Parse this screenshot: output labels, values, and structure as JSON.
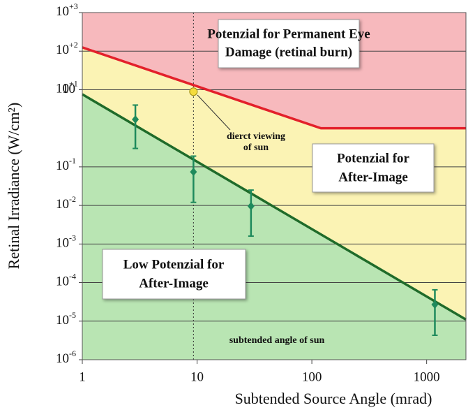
{
  "chart_data": {
    "type": "threshold-zones",
    "xlabel": "Subtended Source Angle (mrad)",
    "ylabel": "Retinal Irradiance (W/cm²)",
    "xscale": "log",
    "yscale": "log",
    "xlim": [
      1,
      2200
    ],
    "ylim": [
      1e-06,
      1000
    ],
    "xticks": [
      1,
      10,
      100,
      1000
    ],
    "yticks": [
      {
        "value": 1e-06,
        "label": "10-6"
      },
      {
        "value": 1e-05,
        "label": "10-5"
      },
      {
        "value": 0.0001,
        "label": "10-4"
      },
      {
        "value": 0.001,
        "label": "10-3"
      },
      {
        "value": 0.01,
        "label": "10-2"
      },
      {
        "value": 0.1,
        "label": "10-1"
      },
      10,
      {
        "value": 10,
        "label": "10+1"
      },
      {
        "value": 100,
        "label": "10+2"
      },
      {
        "value": 1000,
        "label": "10+3"
      }
    ],
    "grid": true,
    "zone_colors": [
      "#f7b9bd",
      "#fbf3b4",
      "#b9e5b3"
    ],
    "boundaries": [
      {
        "color": "#e3202b",
        "x": [
          1,
          120,
          2200
        ],
        "values": [
          125,
          1,
          1
        ]
      },
      {
        "color": "#1f6b2a",
        "x": [
          1,
          2200
        ],
        "values": [
          7.6,
          1.1e-05
        ]
      }
    ],
    "measurements": {
      "color": "#1e8a5c",
      "x": [
        2.9,
        9.3,
        29.5,
        1180
      ],
      "values": [
        1.7,
        0.074,
        0.0096,
        2.7e-05
      ],
      "y_low": [
        0.3,
        0.012,
        0.0016,
        4.3e-06
      ],
      "y_high": [
        4,
        0.19,
        0.025,
        6.5e-05
      ]
    },
    "sun_point": {
      "x": 9.3,
      "value": 8.9,
      "color": "#f4dc3c"
    },
    "annotations": {
      "permanent": [
        "Potenzial for Permanent Eye",
        "Damage (retinal burn)"
      ],
      "after_image": [
        "Potenzial for",
        "After-Image"
      ],
      "low": [
        "Low Potenzial for",
        "After-Image"
      ],
      "sun_viewing": [
        "dierct viewing",
        "of sun"
      ],
      "sun_angle": "subtended angle of sun"
    }
  }
}
